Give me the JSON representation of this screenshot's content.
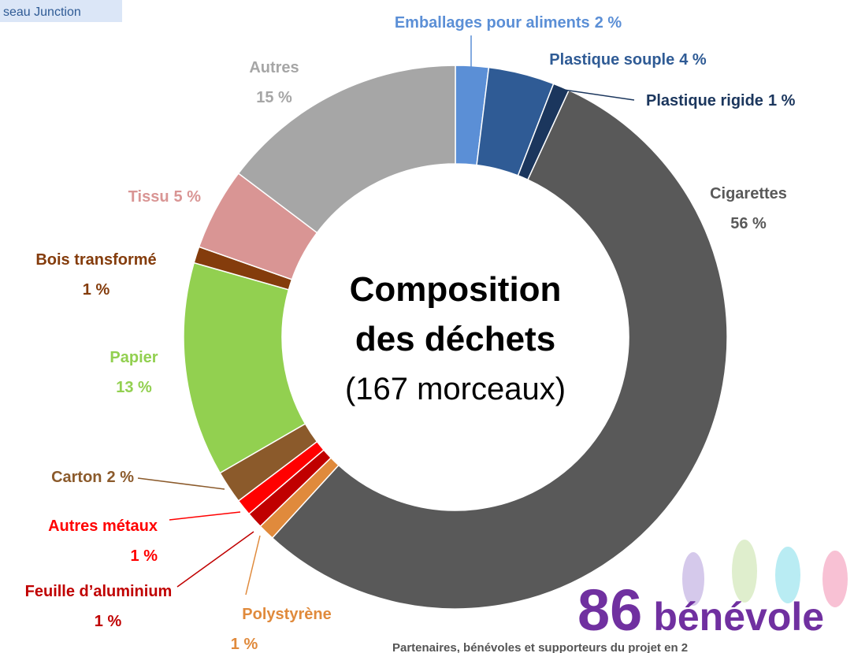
{
  "header_text": "seau Junction",
  "chart_data": {
    "type": "donut",
    "title_lines": [
      "Composition",
      "des déchets"
    ],
    "subtitle": "(167 morceaux)",
    "categories": [
      "Emballages pour aliments",
      "Plastique souple",
      "Plastique rigide",
      "Cigarettes",
      "Polystyrène",
      "Feuille d’aluminium",
      "Autres métaux",
      "Carton",
      "Papier",
      "Bois transformé",
      "Tissu",
      "Autres"
    ],
    "values": [
      2,
      4,
      1,
      56,
      1,
      1,
      1,
      2,
      13,
      1,
      5,
      15
    ],
    "value_labels": [
      "2 %",
      "4 %",
      "1 %",
      "56 %",
      "1 %",
      "1 %",
      "1 %",
      "2 %",
      "13 %",
      "1 %",
      "5 %",
      "15 %"
    ],
    "colors": [
      "#5b8fd6",
      "#2f5b95",
      "#1b365d",
      "#595959",
      "#e08a3c",
      "#c00000",
      "#ff0000",
      "#8b5a2b",
      "#92d050",
      "#843c0c",
      "#d99594",
      "#a6a6a6"
    ]
  },
  "volunteers": {
    "count": "86",
    "label": "bénévole"
  },
  "footer": "Partenaires, bénévoles et supporteurs du projet en 2"
}
